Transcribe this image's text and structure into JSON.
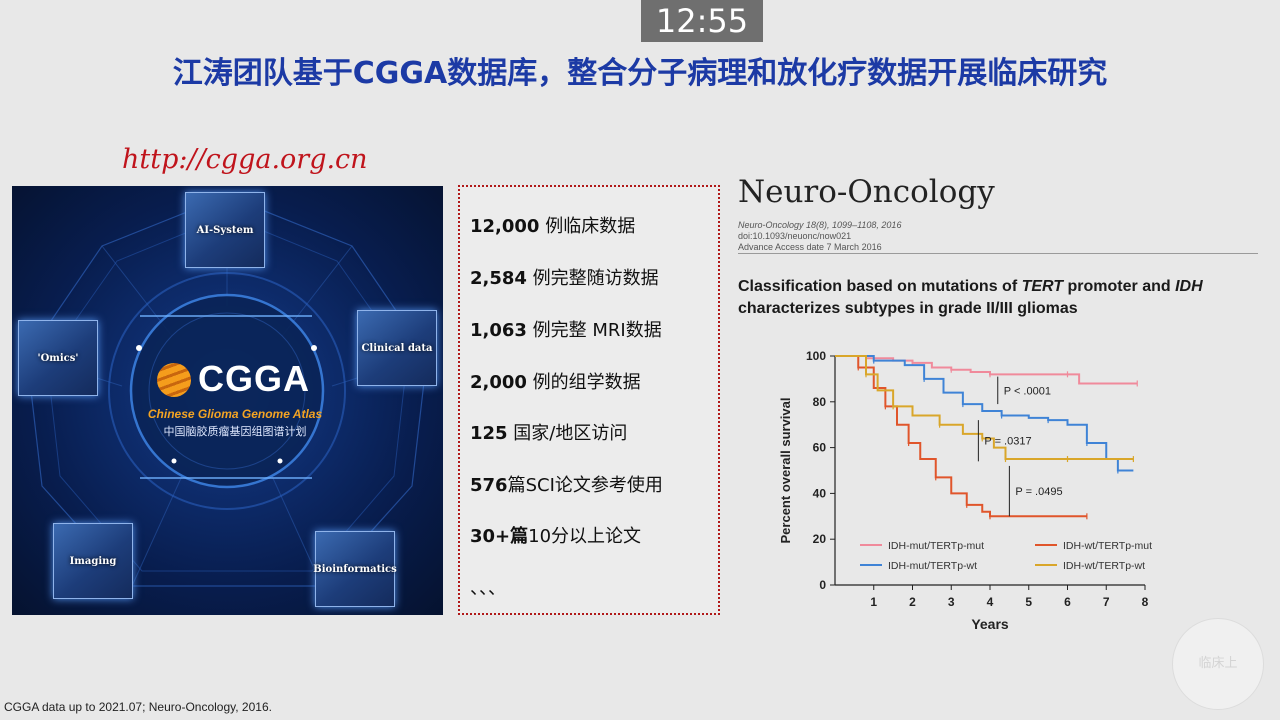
{
  "timer": "12:55",
  "slide": {
    "title": "江涛团队基于CGGA数据库，整合分子病理和放化疗数据开展临床研究",
    "url": "http://cgga.org.cn"
  },
  "cgga_panel": {
    "logo_text": "CGGA",
    "subtitle_en": "Chinese Glioma Genome Atlas",
    "subtitle_zh": "中国脑胶质瘤基因组图谱计划",
    "nodes": [
      "AI-System",
      "Clinical data",
      "Bioinformatics",
      "Imaging",
      "'Omics'"
    ]
  },
  "stats": [
    {
      "num": "12,000",
      "text": " 例临床数据"
    },
    {
      "num": "2,584",
      "text": " 例完整随访数据"
    },
    {
      "num": "1,063",
      "text": " 例完整 MRI数据"
    },
    {
      "num": "2,000",
      "text": " 例的组学数据"
    },
    {
      "num": "125",
      "text": " 国家/地区访问"
    },
    {
      "num": "576",
      "text": "篇SCI论文参考使用"
    },
    {
      "num": "30+篇",
      "text": "10分以上论文"
    },
    {
      "num": "",
      "text": "、、、"
    }
  ],
  "paper": {
    "journal": "Neuro-Oncology",
    "cite_lines": [
      "Neuro-Oncology 18(8), 1099–1108, 2016",
      "doi:10.1093/neuonc/now021",
      "Advance Access date 7 March 2016"
    ],
    "title_parts": [
      {
        "text": "Classification based on mutations of ",
        "italic": false
      },
      {
        "text": "TERT",
        "italic": true
      },
      {
        "text": " promoter and ",
        "italic": false
      },
      {
        "text": "IDH",
        "italic": true
      },
      {
        "text": " characterizes subtypes in grade II/III gliomas",
        "italic": false
      }
    ]
  },
  "chart_data": {
    "type": "line",
    "xlabel": "Years",
    "ylabel": "Percent overall survival",
    "xlim": [
      0,
      8
    ],
    "ylim": [
      0,
      100
    ],
    "xticks": [
      1,
      2,
      3,
      4,
      5,
      6,
      7,
      8
    ],
    "yticks": [
      0,
      20,
      40,
      60,
      80,
      100
    ],
    "legend_position": "bottom",
    "series": [
      {
        "name": "IDH-mut/TERTp-mut",
        "color": "#f08a9b",
        "points": [
          [
            0,
            100
          ],
          [
            0.8,
            99
          ],
          [
            1.5,
            98
          ],
          [
            2,
            97
          ],
          [
            2.5,
            95
          ],
          [
            3,
            94
          ],
          [
            3.5,
            93
          ],
          [
            4,
            92
          ],
          [
            5,
            92
          ],
          [
            6,
            92
          ],
          [
            6.3,
            88
          ],
          [
            7.8,
            88
          ]
        ]
      },
      {
        "name": "IDH-mut/TERTp-wt",
        "color": "#3f83d6",
        "points": [
          [
            0,
            100
          ],
          [
            1,
            98
          ],
          [
            1.8,
            96
          ],
          [
            2.3,
            90
          ],
          [
            2.8,
            84
          ],
          [
            3.3,
            79
          ],
          [
            3.8,
            76
          ],
          [
            4.3,
            74
          ],
          [
            5,
            73
          ],
          [
            5.5,
            72
          ],
          [
            6,
            70
          ],
          [
            6.5,
            62
          ],
          [
            7,
            55
          ],
          [
            7.3,
            50
          ],
          [
            7.7,
            50
          ]
        ]
      },
      {
        "name": "IDH-wt/TERTp-mut",
        "color": "#e0552b",
        "points": [
          [
            0,
            100
          ],
          [
            0.6,
            95
          ],
          [
            1,
            86
          ],
          [
            1.3,
            78
          ],
          [
            1.6,
            70
          ],
          [
            1.9,
            62
          ],
          [
            2.2,
            55
          ],
          [
            2.6,
            47
          ],
          [
            3,
            40
          ],
          [
            3.4,
            35
          ],
          [
            3.8,
            32
          ],
          [
            4,
            30
          ],
          [
            5,
            30
          ],
          [
            6.5,
            30
          ]
        ]
      },
      {
        "name": "IDH-wt/TERTp-wt",
        "color": "#d9a62a",
        "points": [
          [
            0,
            100
          ],
          [
            0.8,
            92
          ],
          [
            1.1,
            85
          ],
          [
            1.5,
            78
          ],
          [
            2,
            74
          ],
          [
            2.7,
            70
          ],
          [
            3.3,
            66
          ],
          [
            3.8,
            64
          ],
          [
            4.1,
            60
          ],
          [
            4.4,
            55
          ],
          [
            5,
            55
          ],
          [
            6,
            55
          ],
          [
            7,
            55
          ],
          [
            7.7,
            55
          ]
        ]
      }
    ],
    "annotations": [
      "P < .0001",
      "P = .0317",
      "P = .0495"
    ]
  },
  "footer": "CGGA data up to 2021.07; Neuro-Oncology, 2016.",
  "watermark": "临床上"
}
